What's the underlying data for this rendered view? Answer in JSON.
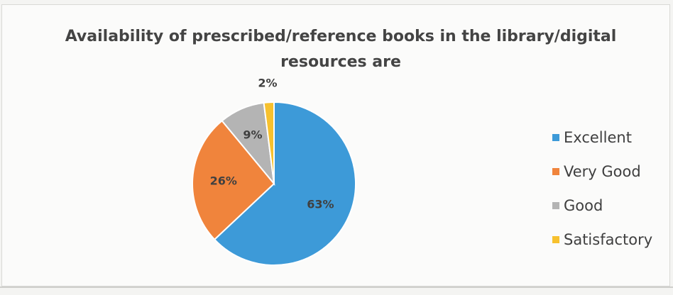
{
  "chart_data": {
    "type": "pie",
    "title": "Availability of prescribed/reference books in the library/digital resources are",
    "title_lines": [
      "Availability of prescribed/reference books in the library/digital",
      "resources are"
    ],
    "categories": [
      "Excellent",
      "Very Good",
      "Good",
      "Satisfactory"
    ],
    "values": [
      63,
      26,
      9,
      2
    ],
    "labels": [
      "63%",
      "26%",
      "9%",
      "2%"
    ],
    "colors": [
      "#3d9ad8",
      "#f0843c",
      "#b4b4b4",
      "#f7c12e"
    ],
    "legend_position": "right",
    "start": "top, clockwise"
  }
}
